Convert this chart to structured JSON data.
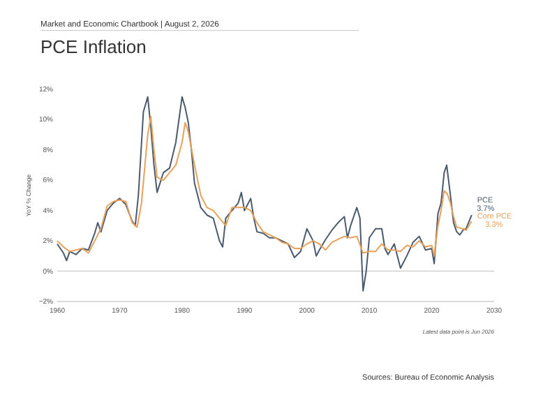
{
  "chart_data": {
    "type": "line",
    "title": "PCE Inflation",
    "subtitle": "Market and Economic Chartbook | August 2, 2026",
    "ylabel": "YoY % Change",
    "xlim": [
      1960,
      2030
    ],
    "xticks": [
      1960,
      1970,
      1980,
      1990,
      2000,
      2010,
      2020,
      2030
    ],
    "ylim": [
      -2,
      12
    ],
    "yticks": [
      {
        "value": -2,
        "label": "−2%"
      },
      {
        "value": 0,
        "label": "0%"
      },
      {
        "value": 2,
        "label": "2%"
      },
      {
        "value": 4,
        "label": "4%"
      },
      {
        "value": 6,
        "label": "6%"
      },
      {
        "value": 8,
        "label": "8%"
      },
      {
        "value": 10,
        "label": "10%"
      },
      {
        "value": 12,
        "label": "12%"
      }
    ],
    "grid": false,
    "legend": false,
    "marker": "none",
    "line_style": "solid",
    "ref_lines": [
      {
        "axis": "y",
        "value": 0,
        "color": "#d0d0d0"
      }
    ],
    "series": [
      {
        "name": "PCE",
        "color": "#4a5a6e",
        "x": [
          1960,
          1961,
          1961.5,
          1962,
          1963,
          1964,
          1965,
          1966,
          1966.5,
          1967,
          1968,
          1969,
          1970,
          1971,
          1972,
          1972.5,
          1973,
          1973.8,
          1974.5,
          1975,
          1975.5,
          1976,
          1977,
          1978,
          1979,
          1980,
          1980.5,
          1981,
          1981.5,
          1982,
          1983,
          1984,
          1985,
          1986,
          1986.5,
          1987,
          1988,
          1989,
          1989.5,
          1990,
          1991,
          1991.5,
          1992,
          1993,
          1994,
          1995,
          1996,
          1997,
          1998,
          1999,
          2000,
          2001,
          2001.5,
          2002,
          2003,
          2004,
          2005,
          2006,
          2006.5,
          2007,
          2008,
          2008.5,
          2009,
          2009.5,
          2010,
          2011,
          2012,
          2012.5,
          2013,
          2014,
          2015,
          2016,
          2017,
          2018,
          2019,
          2020,
          2020.4,
          2021,
          2021.5,
          2022,
          2022.4,
          2023,
          2023.5,
          2024,
          2024.5,
          2025,
          2025.5,
          2026.4
        ],
        "values": [
          1.8,
          1.2,
          0.7,
          1.3,
          1.1,
          1.5,
          1.4,
          2.5,
          3.2,
          2.6,
          4.0,
          4.5,
          4.8,
          4.4,
          3.3,
          3.0,
          5.0,
          10.5,
          11.5,
          9.5,
          7.0,
          5.2,
          6.5,
          6.8,
          8.5,
          11.5,
          10.8,
          9.8,
          8.0,
          5.8,
          4.2,
          3.7,
          3.5,
          2.0,
          1.6,
          3.5,
          4.0,
          4.5,
          5.2,
          4.0,
          4.8,
          3.5,
          2.6,
          2.5,
          2.2,
          2.2,
          2.0,
          1.8,
          0.9,
          1.3,
          2.8,
          2.0,
          1.0,
          1.4,
          2.1,
          2.7,
          3.2,
          3.6,
          2.2,
          3.0,
          4.2,
          3.5,
          -1.3,
          0.0,
          2.2,
          2.8,
          2.8,
          1.5,
          1.1,
          1.8,
          0.2,
          1.0,
          1.9,
          2.3,
          1.4,
          1.5,
          0.5,
          3.8,
          4.5,
          6.5,
          7.0,
          5.0,
          3.2,
          2.6,
          2.4,
          2.7,
          2.8,
          3.7
        ]
      },
      {
        "name": "Core PCE",
        "color": "#e8a15a",
        "x": [
          1960,
          1961,
          1962,
          1963,
          1964,
          1965,
          1966,
          1967,
          1968,
          1969,
          1970,
          1971,
          1972,
          1972.8,
          1973.5,
          1974.5,
          1975,
          1975.5,
          1976,
          1977,
          1978,
          1979,
          1980,
          1980.5,
          1981,
          1982,
          1983,
          1984,
          1985,
          1986,
          1987,
          1988,
          1989,
          1990,
          1991,
          1992,
          1993,
          1994,
          1995,
          1996,
          1997,
          1998,
          1999,
          2000,
          2001,
          2002,
          2003,
          2004,
          2005,
          2006,
          2007,
          2008,
          2009,
          2010,
          2011,
          2012,
          2013,
          2014,
          2015,
          2016,
          2017,
          2018,
          2019,
          2020,
          2020.4,
          2021,
          2021.5,
          2022,
          2022.5,
          2023,
          2023.5,
          2024,
          2025,
          2025.5,
          2026.4
        ],
        "values": [
          2.0,
          1.6,
          1.3,
          1.4,
          1.5,
          1.2,
          2.0,
          2.8,
          4.3,
          4.6,
          4.7,
          4.6,
          3.2,
          2.9,
          4.5,
          9.0,
          10.2,
          8.0,
          6.2,
          6.0,
          6.5,
          7.0,
          8.5,
          9.8,
          9.2,
          7.0,
          5.0,
          4.2,
          4.0,
          3.5,
          3.0,
          4.2,
          4.2,
          4.2,
          4.0,
          3.2,
          2.6,
          2.4,
          2.2,
          1.9,
          1.8,
          1.5,
          1.5,
          1.8,
          2.0,
          1.8,
          1.4,
          1.9,
          2.1,
          2.3,
          2.2,
          2.3,
          1.2,
          1.3,
          1.3,
          1.8,
          1.4,
          1.4,
          1.3,
          1.7,
          1.6,
          2.0,
          1.6,
          1.7,
          1.0,
          3.0,
          4.0,
          5.3,
          5.1,
          4.5,
          3.6,
          2.9,
          2.8,
          2.7,
          3.3
        ]
      }
    ],
    "annotations": [
      {
        "text": "3.7%",
        "x": 2026.4,
        "y": 3.7
      },
      {
        "text": "3.3%",
        "x": 2026.4,
        "y": 3.3
      },
      "Latest data point is Jun 2026",
      "Sources: Bureau of Economic Analysis"
    ]
  }
}
